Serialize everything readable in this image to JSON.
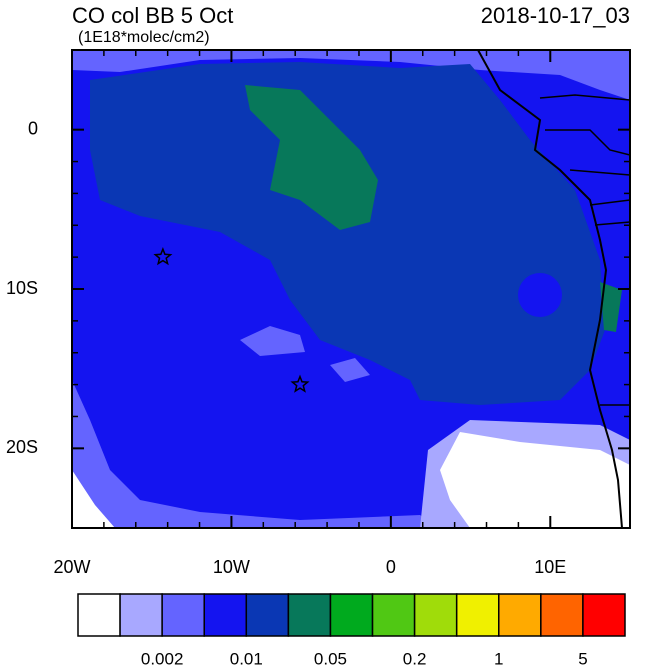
{
  "map": {
    "title": "CO col BB 5 Oct",
    "units": "(1E18*molec/cm2)",
    "timestamp": "2018-10-17_03",
    "xlim": [
      -20,
      15
    ],
    "ylim": [
      -25,
      5
    ],
    "xticks": [
      {
        "value": -20,
        "label": "20W"
      },
      {
        "value": -10,
        "label": "10W"
      },
      0,
      {
        "value": 10,
        "label": "10E"
      }
    ],
    "yticks": [
      0,
      {
        "value": -10,
        "label": "10S"
      },
      {
        "value": -20,
        "label": "20S"
      }
    ],
    "markers": [
      {
        "x": -14.3,
        "y": -8
      },
      {
        "x": -5.7,
        "y": -16
      }
    ],
    "colorbar": {
      "colors": [
        "#ffffff",
        "#a8a8ff",
        "#6464ff",
        "#1414f0",
        "#0a37b4",
        "#07785a",
        "#00aa1e",
        "#50c814",
        "#a0dc0a",
        "#f0f000",
        "#ffaa00",
        "#ff6400",
        "#ff0000"
      ],
      "ticks": [
        0.002,
        0.01,
        0.05,
        0.2,
        1,
        5
      ]
    }
  }
}
